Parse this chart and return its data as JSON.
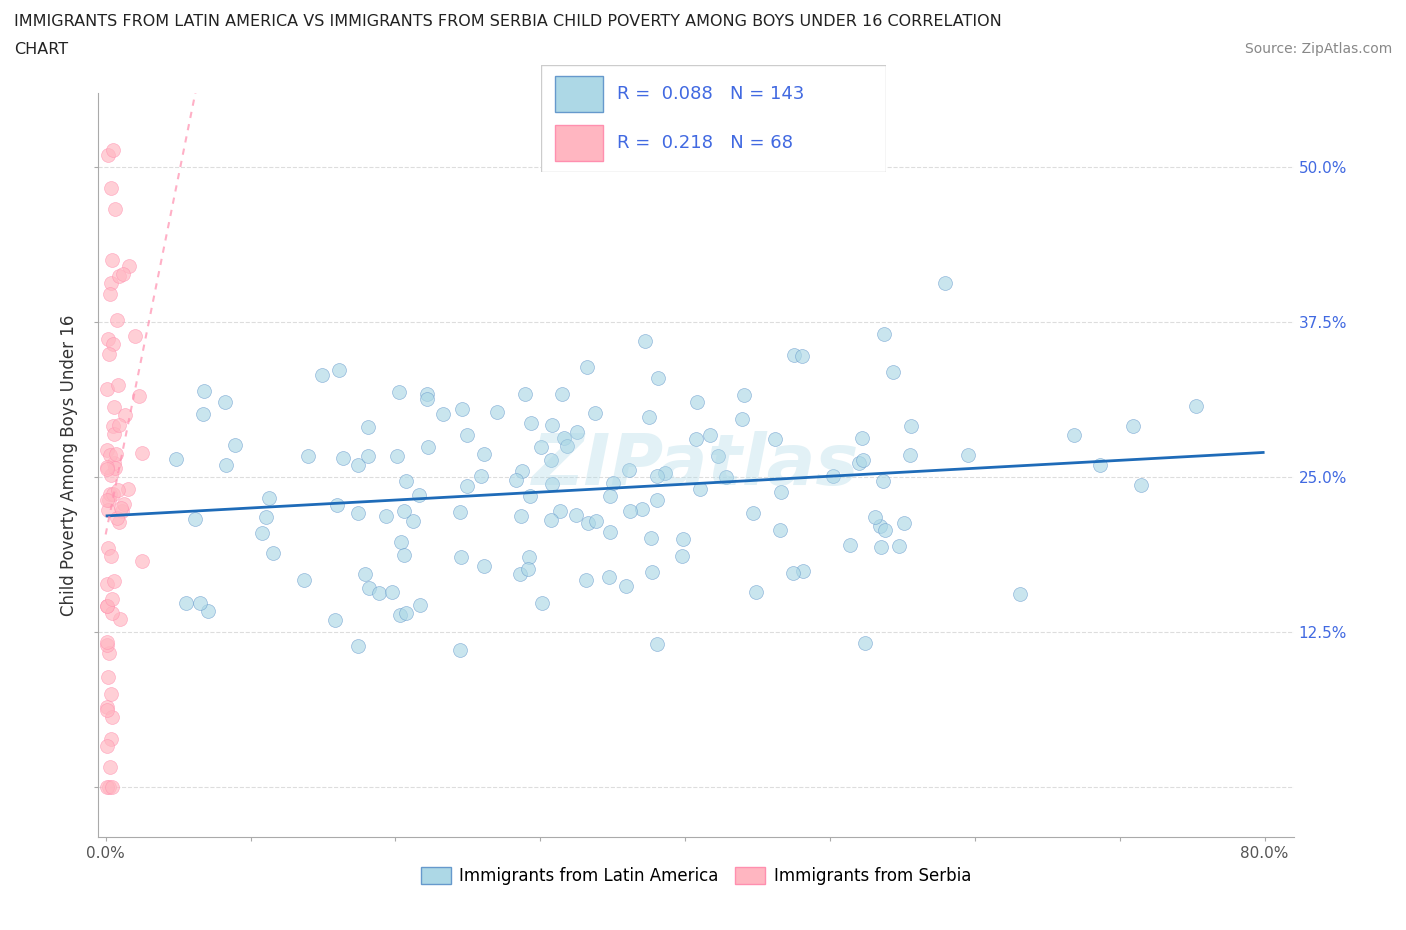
{
  "title_line1": "IMMIGRANTS FROM LATIN AMERICA VS IMMIGRANTS FROM SERBIA CHILD POVERTY AMONG BOYS UNDER 16 CORRELATION",
  "title_line2": "CHART",
  "source": "Source: ZipAtlas.com",
  "ylabel": "Child Poverty Among Boys Under 16",
  "xlim": [
    -0.005,
    0.82
  ],
  "ylim": [
    -0.04,
    0.56
  ],
  "xticks": [
    0.0,
    0.1,
    0.2,
    0.3,
    0.4,
    0.5,
    0.6,
    0.7,
    0.8
  ],
  "xticklabels": [
    "0.0%",
    "",
    "",
    "",
    "",
    "",
    "",
    "",
    "80.0%"
  ],
  "yticks": [
    0.0,
    0.125,
    0.25,
    0.375,
    0.5
  ],
  "yticklabels_left": [
    "",
    "",
    "",
    "",
    ""
  ],
  "yticklabels_right": [
    "",
    "12.5%",
    "25.0%",
    "37.5%",
    "50.0%"
  ],
  "R_latin": 0.088,
  "N_latin": 143,
  "R_serbia": 0.218,
  "N_serbia": 68,
  "color_latin": "#ADD8E6",
  "color_serbia": "#FFB6C1",
  "edge_latin": "#6699CC",
  "edge_serbia": "#FF8FAF",
  "trendline_color_latin": "#1E6BB8",
  "trendline_color_serbia": "#FF8FAF",
  "right_axis_color": "#4169E1",
  "watermark": "ZIPatlas",
  "legend_labels": [
    "Immigrants from Latin America",
    "Immigrants from Serbia"
  ],
  "grid_color": "#DDDDDD",
  "scatter_size": 100
}
